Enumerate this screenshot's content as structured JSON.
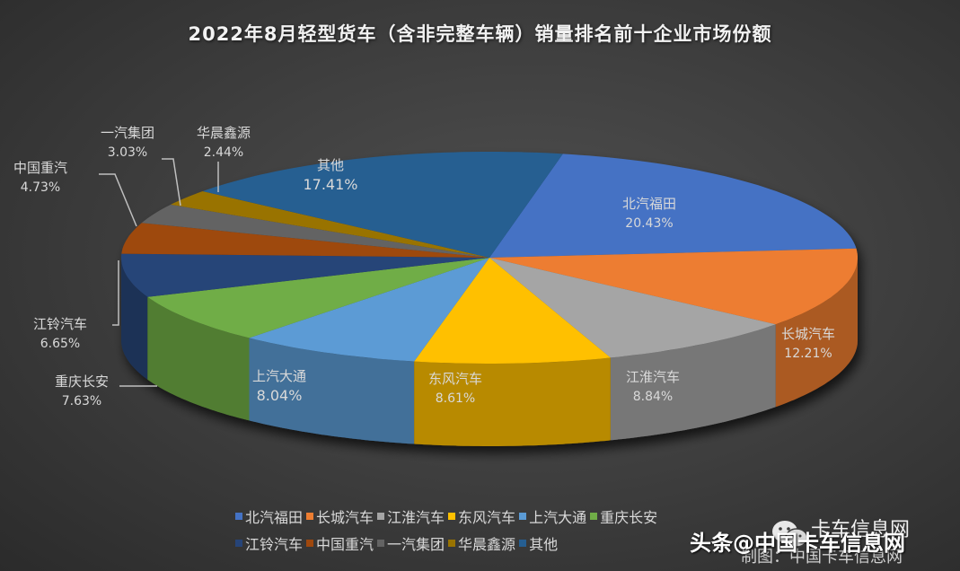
{
  "chart_data": {
    "type": "pie",
    "style": "3d-exploded-none",
    "title": "2022年8月轻型货车（含非完整车辆）销量排名前十企业市场份额",
    "unit": "%",
    "categories": [
      "北汽福田",
      "长城汽车",
      "江淮汽车",
      "东风汽车",
      "上汽大通",
      "重庆长安",
      "江铃汽车",
      "中国重汽",
      "一汽集团",
      "华晨鑫源",
      "其他"
    ],
    "values": [
      20.43,
      12.21,
      8.84,
      8.61,
      8.04,
      7.63,
      6.65,
      4.73,
      3.03,
      2.44,
      17.41
    ],
    "value_labels": [
      "20.43%",
      "12.21%",
      "8.84%",
      "8.61%",
      "8.04%",
      "7.63%",
      "6.65%",
      "4.73%",
      "3.03%",
      "2.44%",
      "17.41%"
    ],
    "colors": [
      "#4472C4",
      "#ED7D31",
      "#A5A5A5",
      "#FFC000",
      "#5B9BD5",
      "#70AD47",
      "#264478",
      "#9E480E",
      "#636363",
      "#997300",
      "#255E91"
    ],
    "legend_position": "bottom",
    "legend_rows": [
      [
        "北汽福田",
        "长城汽车",
        "江淮汽车",
        "东风汽车",
        "上汽大通",
        "重庆长安"
      ],
      [
        "江铃汽车",
        "中国重汽",
        "一汽集团",
        "华晨鑫源",
        "其他"
      ]
    ]
  },
  "labels": [
    {
      "name": "北汽福田",
      "pct": "20.43%"
    },
    {
      "name": "长城汽车",
      "pct": "12.21%"
    },
    {
      "name": "江淮汽车",
      "pct": "8.84%"
    },
    {
      "name": "东风汽车",
      "pct": "8.61%"
    },
    {
      "name": "上汽大通",
      "pct": "8.04%"
    },
    {
      "name": "重庆长安",
      "pct": "7.63%"
    },
    {
      "name": "江铃汽车",
      "pct": "6.65%"
    },
    {
      "name": "中国重汽",
      "pct": "4.73%"
    },
    {
      "name": "一汽集团",
      "pct": "3.03%"
    },
    {
      "name": "华晨鑫源",
      "pct": "2.44%"
    },
    {
      "name": "其他",
      "pct": "17.41%"
    }
  ],
  "watermark": {
    "toutiao": "头条@中国卡车信息网",
    "site": "卡车信息网",
    "credit": "制图：中国卡车信息网"
  }
}
